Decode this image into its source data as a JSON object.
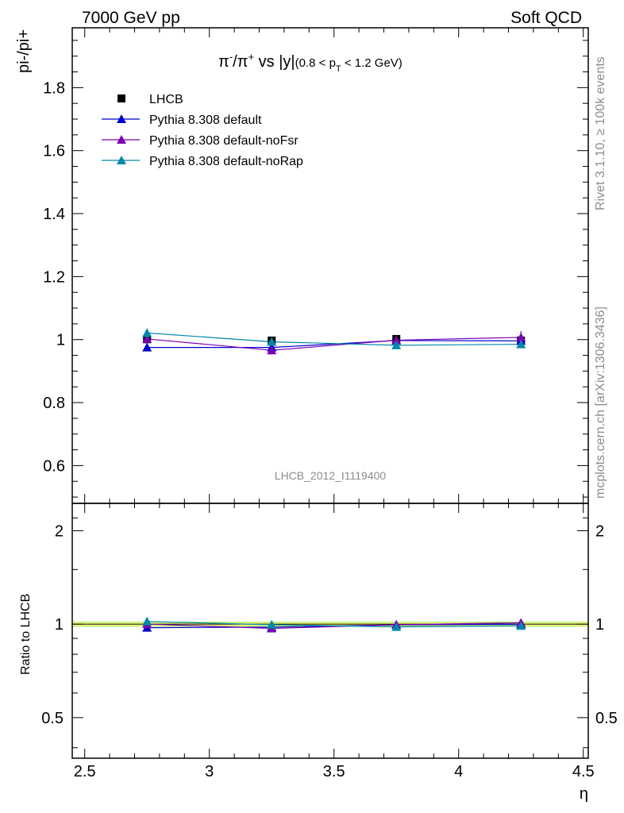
{
  "header": {
    "left": "7000 GeV pp",
    "right": "Soft QCD"
  },
  "side": {
    "rivet": "Rivet 3.1.10, ≥ 100k events",
    "mcplots": "mcplots.cern.ch [arXiv:1306.3436]"
  },
  "main_title": {
    "part1": "π",
    "sup1": "-",
    "part2": "/π",
    "sup2": "+",
    "part3": " vs |y|",
    "sub_part1": "(0.8 < p",
    "sub_T": "T",
    "sub_part2": " < 1.2 GeV)"
  },
  "analysis_label": "LHCB_2012_I1119400",
  "colors": {
    "data": "#000000",
    "default": "#0000cc",
    "noFsr": "#7a00b4",
    "noRap": "#0088aa",
    "band": "#ffff80",
    "band_edge": "#99ee66"
  },
  "chart_data": [
    {
      "type": "line",
      "title": "π-/π+ vs |y| (0.8 < pT < 1.2 GeV)",
      "ylabel": "pi-/pi+",
      "xlim": [
        2.45,
        4.52
      ],
      "ylim": [
        0.48,
        1.99
      ],
      "x_ticks": [
        "2.5",
        "3",
        "3.5",
        "4",
        "4.5"
      ],
      "y_ticks": [
        "0.6",
        "0.8",
        "1",
        "1.2",
        "1.4",
        "1.6",
        "1.8"
      ],
      "x": [
        2.75,
        3.25,
        3.75,
        4.25
      ],
      "legend_position": "top-left",
      "series": [
        {
          "name": "LHCB",
          "marker": "square",
          "values": [
            1.001,
            0.997,
            1.002,
            0.997
          ],
          "errors": [
            0.006,
            0.006,
            0.006,
            0.006
          ]
        },
        {
          "name": "Pythia 8.308 default",
          "marker": "triangle",
          "values": [
            0.975,
            0.975,
            0.997,
            0.996
          ],
          "errors": [
            0.012,
            0.012,
            0.012,
            0.012
          ]
        },
        {
          "name": "Pythia 8.308 default-noFsr",
          "marker": "triangle",
          "values": [
            1.002,
            0.966,
            0.998,
            1.007
          ],
          "errors": [
            0.014,
            0.013,
            0.014,
            0.02
          ]
        },
        {
          "name": "Pythia 8.308 default-noRap",
          "marker": "triangle",
          "values": [
            1.021,
            0.993,
            0.982,
            0.985
          ],
          "errors": [
            0.014,
            0.012,
            0.012,
            0.012
          ]
        }
      ]
    },
    {
      "type": "line",
      "ylabel": "Ratio to LHCB",
      "xlabel": "η",
      "xlim": [
        2.45,
        4.52
      ],
      "ylim": [
        0.37,
        2.45
      ],
      "log_y": true,
      "x_ticks": [
        "2.5",
        "3",
        "3.5",
        "4",
        "4.5"
      ],
      "y_ticks": [
        "0.5",
        "1",
        "2"
      ],
      "x": [
        2.75,
        3.25,
        3.75,
        4.25
      ],
      "band": {
        "low": 0.985,
        "high": 1.015
      },
      "series": [
        {
          "name": "Pythia 8.308 default",
          "values": [
            0.974,
            0.978,
            0.995,
            0.999
          ]
        },
        {
          "name": "Pythia 8.308 default-noFsr",
          "values": [
            1.001,
            0.969,
            0.996,
            1.01
          ]
        },
        {
          "name": "Pythia 8.308 default-noRap",
          "values": [
            1.02,
            0.996,
            0.98,
            0.988
          ]
        }
      ]
    }
  ]
}
